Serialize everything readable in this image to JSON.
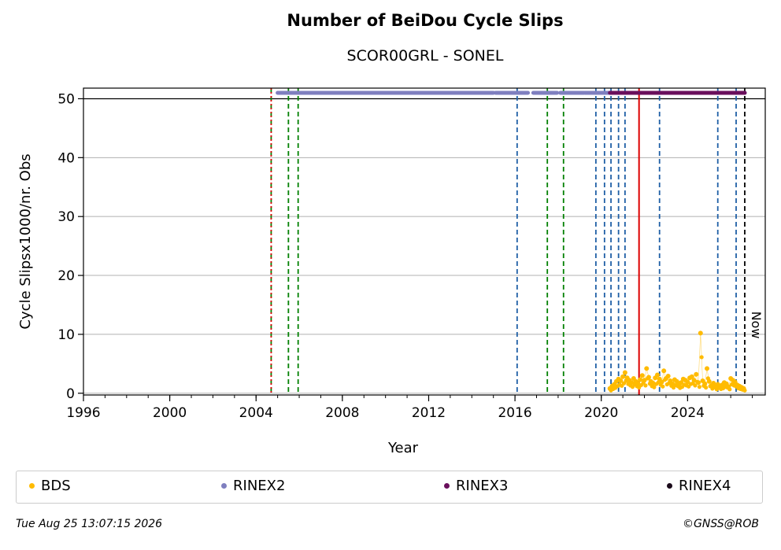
{
  "chart_data": {
    "type": "scatter",
    "title": "Number of BeiDou Cycle Slips",
    "subtitle": "SCOR00GRL - SONEL",
    "xlabel": "Year",
    "ylabel": "Cycle Slipsx1000/nr. Obs",
    "xlim": [
      1996,
      2027.6
    ],
    "ylim": [
      -0.3,
      51.8
    ],
    "xticks": [
      "1996",
      "2000",
      "2004",
      "2008",
      "2012",
      "2016",
      "2020",
      "2024"
    ],
    "yticks": [
      "0",
      "10",
      "20",
      "30",
      "40",
      "50"
    ],
    "grid": "horizontal",
    "now_label": "Now",
    "now_year": 2026.65,
    "reference_line_y": 50,
    "vlines": [
      {
        "x": 2004.7,
        "color": "#008000",
        "style": "dashed"
      },
      {
        "x": 2004.7,
        "color": "#dd0000",
        "style": "dotted"
      },
      {
        "x": 2005.5,
        "color": "#008000",
        "style": "dashed"
      },
      {
        "x": 2005.95,
        "color": "#008000",
        "style": "dashed"
      },
      {
        "x": 2016.1,
        "color": "#1f5fa6",
        "style": "dashed"
      },
      {
        "x": 2017.5,
        "color": "#008000",
        "style": "dashed"
      },
      {
        "x": 2018.25,
        "color": "#008000",
        "style": "dashed"
      },
      {
        "x": 2019.75,
        "color": "#1f5fa6",
        "style": "dashed"
      },
      {
        "x": 2020.15,
        "color": "#1f5fa6",
        "style": "dashed"
      },
      {
        "x": 2020.45,
        "color": "#1f5fa6",
        "style": "dashed"
      },
      {
        "x": 2020.8,
        "color": "#1f5fa6",
        "style": "dashed"
      },
      {
        "x": 2021.1,
        "color": "#1f5fa6",
        "style": "dashed"
      },
      {
        "x": 2021.75,
        "color": "#dd0000",
        "style": "solid"
      },
      {
        "x": 2022.7,
        "color": "#1f5fa6",
        "style": "dashed"
      },
      {
        "x": 2025.4,
        "color": "#1f5fa6",
        "style": "dashed"
      },
      {
        "x": 2026.25,
        "color": "#1f5fa6",
        "style": "dashed"
      },
      {
        "x": 2026.65,
        "color": "#000000",
        "style": "dashed"
      }
    ],
    "rinex_bars": [
      {
        "name": "RINEX2",
        "color": "#7f7fbf",
        "segments": [
          [
            2005.0,
            2015.0
          ],
          [
            2015.1,
            2016.6
          ],
          [
            2016.85,
            2017.95
          ],
          [
            2018.1,
            2019.2
          ],
          [
            2019.25,
            2026.65
          ]
        ],
        "y": 51
      },
      {
        "name": "RINEX3",
        "color": "#6a0f5c",
        "segments": [
          [
            2020.4,
            2026.65
          ]
        ],
        "y": 51
      }
    ],
    "series": [
      {
        "name": "BDS",
        "color": "#ffbb00",
        "x": [
          2020.4,
          2020.5,
          2020.6,
          2020.7,
          2020.8,
          2020.9,
          2021.0,
          2021.1,
          2021.2,
          2021.3,
          2021.4,
          2021.5,
          2021.6,
          2021.7,
          2021.8,
          2021.9,
          2022.0,
          2022.1,
          2022.2,
          2022.3,
          2022.4,
          2022.5,
          2022.6,
          2022.7,
          2022.8,
          2022.9,
          2023.0,
          2023.1,
          2023.2,
          2023.3,
          2023.4,
          2023.5,
          2023.6,
          2023.7,
          2023.8,
          2023.9,
          2024.0,
          2024.1,
          2024.2,
          2024.3,
          2024.4,
          2024.5,
          2024.6,
          2024.7,
          2024.8,
          2024.9,
          2025.0,
          2025.1,
          2025.2,
          2025.3,
          2025.4,
          2025.5,
          2025.6,
          2025.7,
          2025.8,
          2025.9,
          2026.0,
          2026.1,
          2026.2,
          2026.3,
          2026.4,
          2026.5,
          2026.6
        ],
        "y": [
          0.8,
          1.2,
          1.5,
          2.0,
          2.4,
          2.1,
          2.8,
          3.5,
          2.6,
          2.2,
          1.8,
          2.5,
          2.0,
          1.6,
          2.3,
          3.0,
          2.2,
          4.2,
          2.7,
          2.0,
          1.7,
          2.6,
          3.1,
          2.4,
          1.9,
          3.8,
          2.5,
          2.9,
          2.1,
          1.6,
          2.3,
          2.0,
          1.5,
          1.8,
          2.4,
          2.2,
          1.9,
          2.6,
          2.8,
          2.2,
          3.2,
          1.8,
          10.2,
          2.1,
          1.6,
          4.2,
          2.0,
          1.3,
          1.7,
          1.1,
          1.5,
          1.2,
          1.4,
          1.8,
          1.6,
          1.1,
          2.5,
          2.2,
          1.9,
          1.4,
          1.2,
          1.0,
          0.8
        ]
      }
    ]
  },
  "legend": {
    "items": [
      {
        "label": "BDS",
        "color": "#ffbb00"
      },
      {
        "label": "RINEX2",
        "color": "#7f7fbf"
      },
      {
        "label": "RINEX3",
        "color": "#6a0f5c"
      },
      {
        "label": "RINEX4",
        "color": "#1a0a1a"
      }
    ]
  },
  "footer": {
    "timestamp": "Tue Aug 25 13:07:15 2026",
    "credit": "©GNSS@ROB"
  }
}
